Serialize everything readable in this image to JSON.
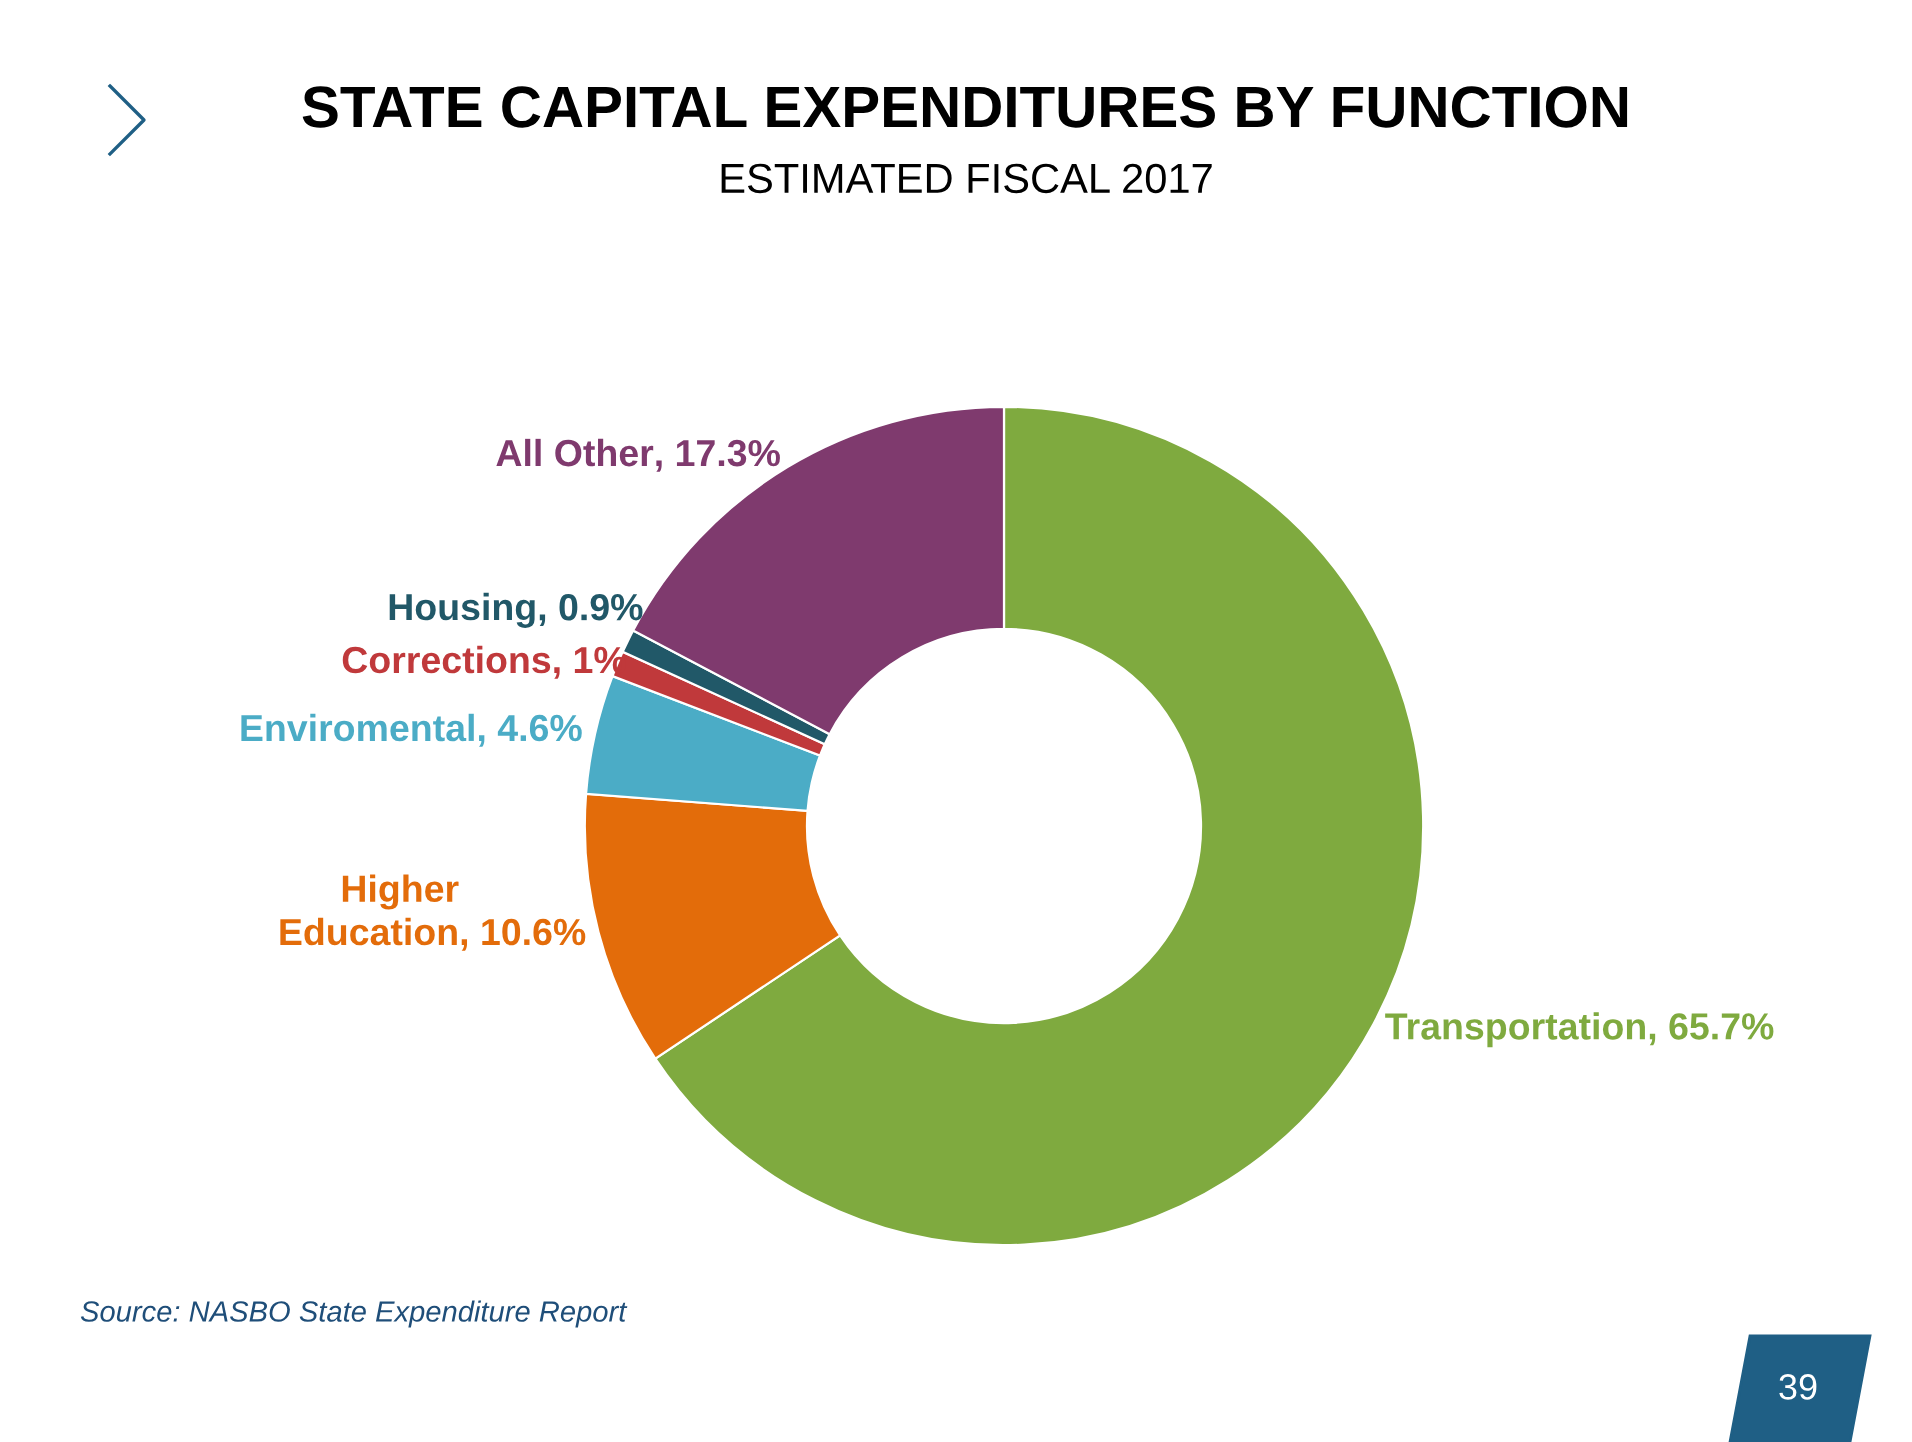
{
  "chart_data": {
    "type": "donut",
    "title": "STATE CAPITAL EXPENDITURES BY FUNCTION",
    "subtitle": "ESTIMATED FISCAL 2017",
    "categories": [
      "Transportation",
      "Higher Education",
      "Enviromental",
      "Corrections",
      "Housing",
      "All Other"
    ],
    "values": [
      65.7,
      10.6,
      4.6,
      1,
      0.9,
      17.3
    ],
    "value_labels": [
      ", 65.7%",
      ", 10.6%",
      ", 4.6%",
      ", 1%",
      ", 0.9%",
      ", 17.3%"
    ],
    "colors": [
      "#7faa3f",
      "#e36c0a",
      "#4bacc6",
      "#c0393b",
      "#215868",
      "#7f3a6e"
    ],
    "annotations": [
      "Source: NASBO State Expenditure Report",
      "39"
    ]
  }
}
